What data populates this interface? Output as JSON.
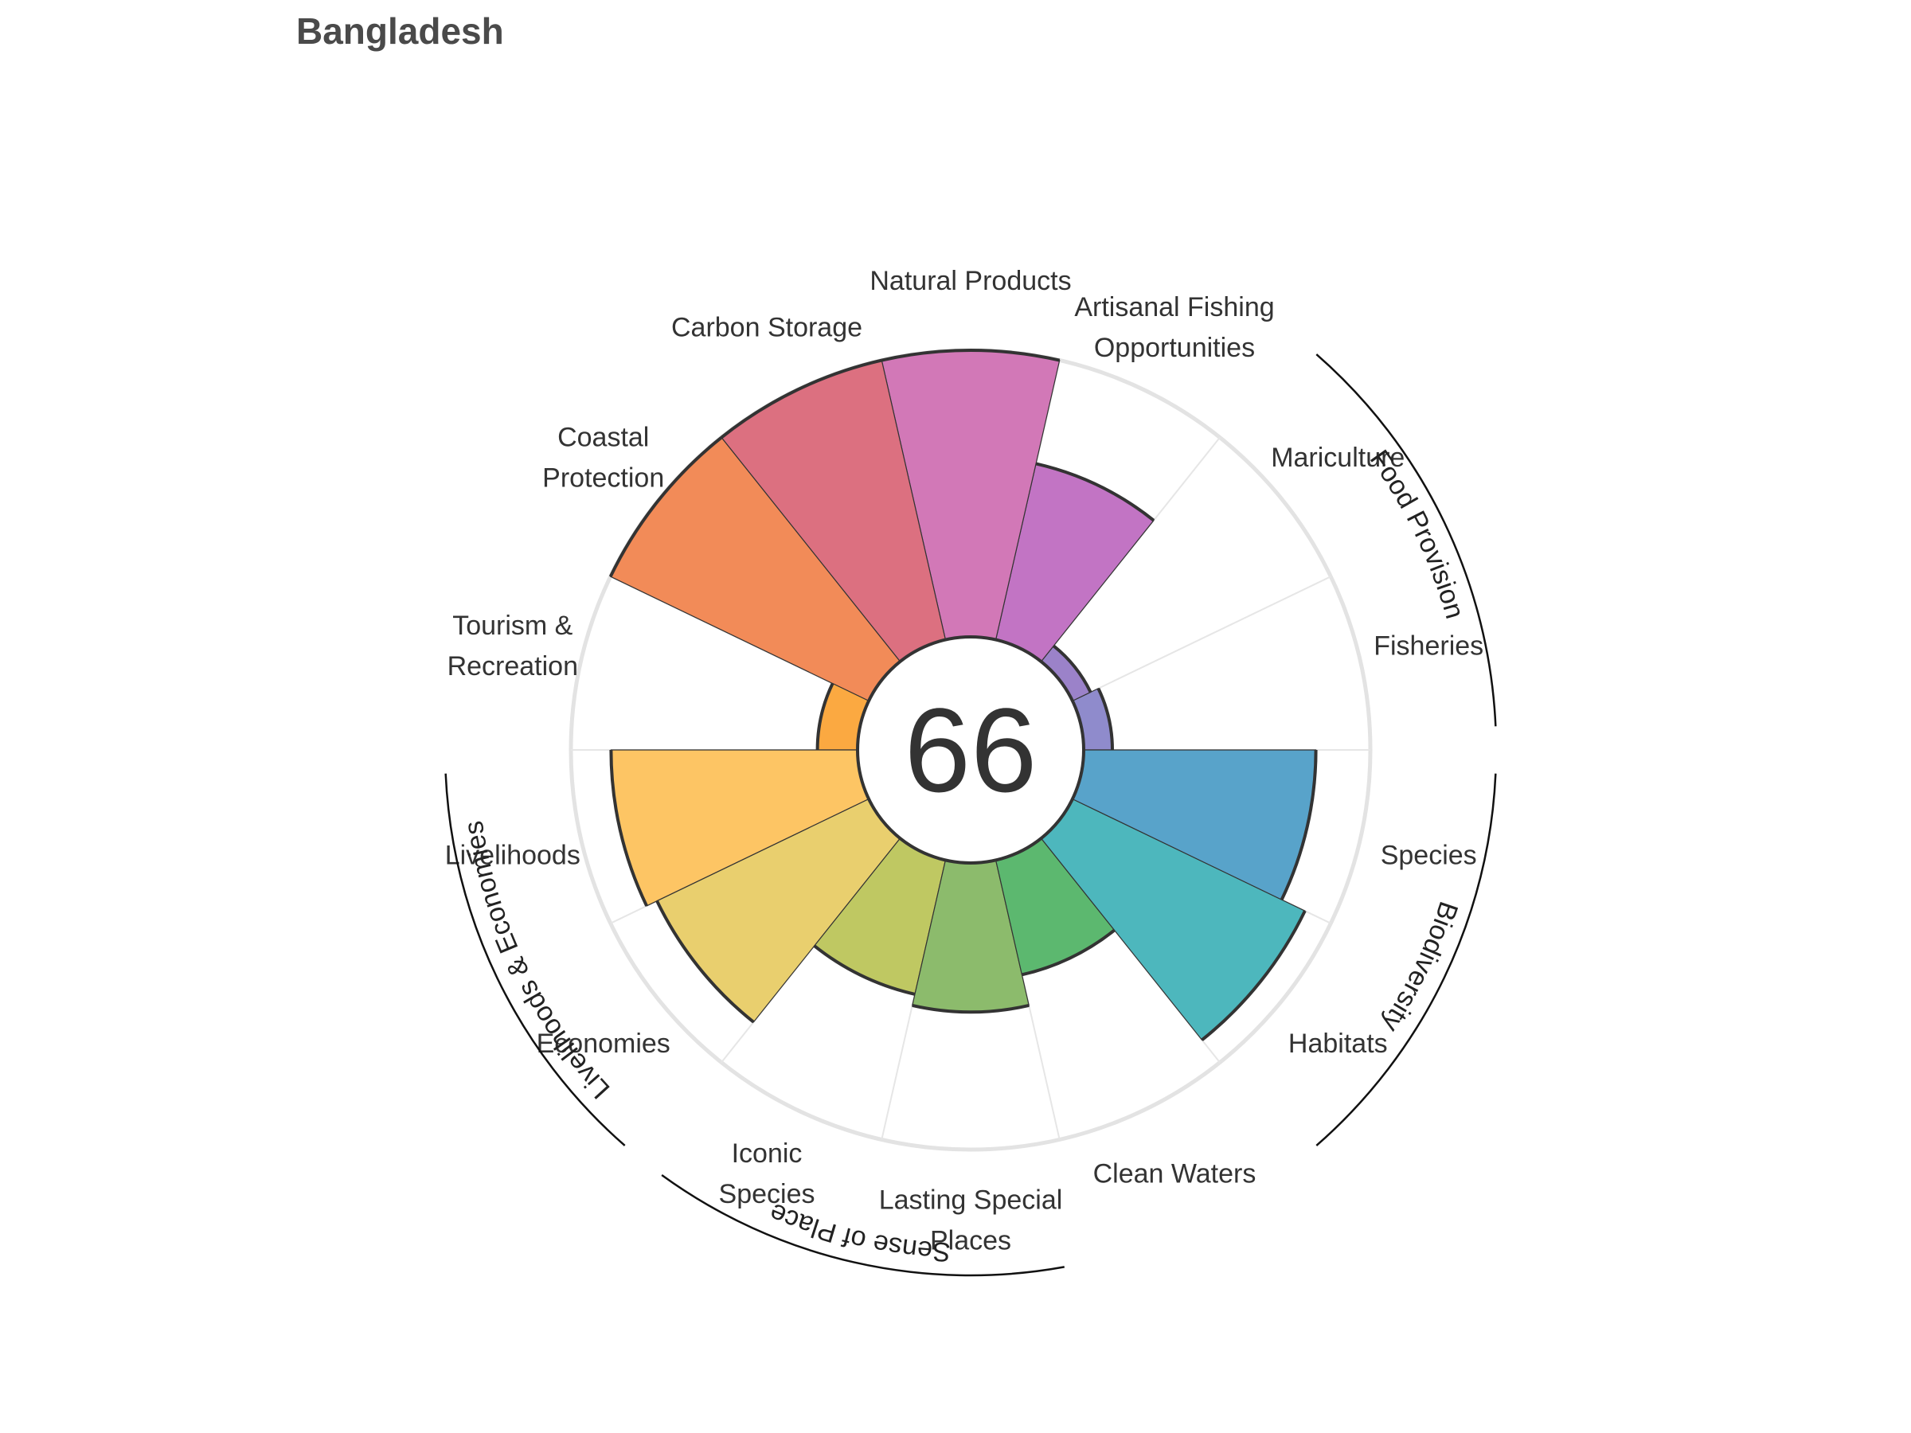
{
  "chart_data": {
    "type": "polar-bar",
    "title": "Bangladesh",
    "center_score": "66",
    "max_value": 100,
    "segments": [
      {
        "name": "Fisheries",
        "label_lines": [
          "Fisheries"
        ],
        "value": 10,
        "color": "#8f8bcc"
      },
      {
        "name": "Mariculture",
        "label_lines": [
          "Mariculture"
        ],
        "value": 7,
        "color": "#9b82c9"
      },
      {
        "name": "Artisanal Fishing Opportunities",
        "label_lines": [
          "Artisanal Fishing",
          "Opportunities"
        ],
        "value": 63,
        "color": "#c274c4"
      },
      {
        "name": "Natural Products",
        "label_lines": [
          "Natural Products"
        ],
        "value": 100,
        "color": "#d278b7"
      },
      {
        "name": "Carbon Storage",
        "label_lines": [
          "Carbon Storage"
        ],
        "value": 100,
        "color": "#dc7080"
      },
      {
        "name": "Coastal Protection",
        "label_lines": [
          "Coastal",
          "Protection"
        ],
        "value": 100,
        "color": "#f28b58"
      },
      {
        "name": "Tourism & Recreation",
        "label_lines": [
          "Tourism &",
          "Recreation"
        ],
        "value": 14,
        "color": "#fba941"
      },
      {
        "name": "Livelihoods",
        "label_lines": [
          "Livelihoods"
        ],
        "value": 86,
        "color": "#fdc564"
      },
      {
        "name": "Economies",
        "label_lines": [
          "Economies"
        ],
        "value": 82,
        "color": "#e9cf6e"
      },
      {
        "name": "Iconic Species",
        "label_lines": [
          "Iconic",
          "Species"
        ],
        "value": 48,
        "color": "#bfc862"
      },
      {
        "name": "Lasting Special Places",
        "label_lines": [
          "Lasting Special",
          "Places"
        ],
        "value": 52,
        "color": "#8cbb6c"
      },
      {
        "name": "Clean Waters",
        "label_lines": [
          "Clean Waters"
        ],
        "value": 41,
        "color": "#5cb86f"
      },
      {
        "name": "Habitats",
        "label_lines": [
          "Habitats"
        ],
        "value": 90,
        "color": "#4db7bd"
      },
      {
        "name": "Species",
        "label_lines": [
          "Species"
        ],
        "value": 81,
        "color": "#58a3ca"
      }
    ],
    "groups": [
      {
        "name": "Food Provision",
        "from": 0,
        "to": 1
      },
      {
        "name": "Biodiversity",
        "from": 12,
        "to": 13
      },
      {
        "name": "Sense of Place",
        "from": 9,
        "to": 10
      },
      {
        "name": "Livelihoods & Economies",
        "from": 7,
        "to": 8
      }
    ],
    "grid": true,
    "legend": "none"
  }
}
